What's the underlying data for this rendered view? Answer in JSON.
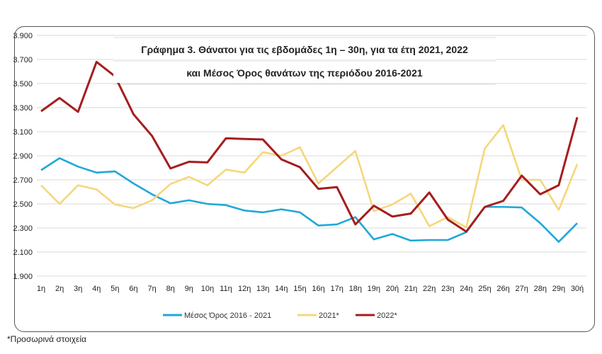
{
  "chart_data": {
    "type": "line",
    "title": "Γράφημα 3. Θάνατοι για τις εβδομάδες 1η – 30η, για τα έτη 2021, 2022",
    "subtitle": "και Μέσος Όρος θανάτων της περιόδου 2016-2021",
    "xlabel": "",
    "ylabel": "",
    "ylim": [
      1900,
      3900
    ],
    "yticks": [
      "1.900",
      "2.100",
      "2.300",
      "2.500",
      "2.700",
      "2.900",
      "3.100",
      "3.300",
      "3.500",
      "3.700",
      "3.900"
    ],
    "ytick_values": [
      1900,
      2100,
      2300,
      2500,
      2700,
      2900,
      3100,
      3300,
      3500,
      3700,
      3900
    ],
    "grid": true,
    "legend_position": "bottom",
    "categories": [
      "1η",
      "2η",
      "3η",
      "4η",
      "5η",
      "6η",
      "7η",
      "8η",
      "9η",
      "10η",
      "11η",
      "12η",
      "13η",
      "14η",
      "15η",
      "16η",
      "17η",
      "18η",
      "19η",
      "20ή",
      "21η",
      "22η",
      "23η",
      "24η",
      "25η",
      "26η",
      "27η",
      "28η",
      "29η",
      "30ή"
    ],
    "series": [
      {
        "name": "Μέσος Όρος 2016 - 2021",
        "color": "#1fa8d8",
        "values": [
          2780,
          2880,
          2810,
          2760,
          2770,
          2670,
          2580,
          2505,
          2530,
          2500,
          2490,
          2445,
          2430,
          2455,
          2430,
          2320,
          2330,
          2390,
          2205,
          2250,
          2195,
          2200,
          2200,
          2265,
          2475,
          2475,
          2470,
          2340,
          2185,
          2340
        ]
      },
      {
        "name": "2021*",
        "color": "#f5d77a",
        "values": [
          2655,
          2500,
          2655,
          2620,
          2495,
          2465,
          2530,
          2665,
          2725,
          2655,
          2785,
          2760,
          2930,
          2900,
          2970,
          2670,
          2805,
          2940,
          2440,
          2495,
          2585,
          2315,
          2390,
          2305,
          2960,
          3155,
          2700,
          2700,
          2450,
          2830
        ]
      },
      {
        "name": "2022*",
        "color": "#a51d1d",
        "values": [
          3270,
          3380,
          3265,
          3680,
          3560,
          3245,
          3065,
          2795,
          2850,
          2845,
          3045,
          3040,
          3035,
          2870,
          2805,
          2625,
          2640,
          2330,
          2485,
          2395,
          2420,
          2595,
          2370,
          2270,
          2475,
          2525,
          2735,
          2580,
          2655,
          3220
        ]
      }
    ]
  },
  "footnote": "*Προσωρινά στοιχεία"
}
